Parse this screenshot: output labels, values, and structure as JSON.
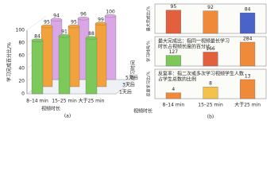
{
  "chart_data": [
    {
      "type": "bar3d",
      "ylabel": "学习完成百分比/%",
      "xlabel": "视频时长",
      "zlabel": "学习时间",
      "caption": "(a)",
      "categories": [
        "8–14 min",
        "15–25 min",
        "大于25 min"
      ],
      "series": [
        {
          "name": "1天后",
          "color": "#7cc85a",
          "values": [
            84,
            91,
            88
          ]
        },
        {
          "name": "3天后",
          "color": "#f2a23c",
          "values": [
            95,
            95,
            99
          ]
        },
        {
          "name": "5天后",
          "color": "#d9a6e6",
          "values": [
            94,
            96,
            100
          ]
        }
      ],
      "ylim": [
        0,
        100
      ],
      "yticks": [
        0,
        20,
        40,
        60,
        80,
        100
      ]
    },
    {
      "type": "panel-bar",
      "xlabel": "视频时长",
      "caption": "(b)",
      "categories": [
        "8–14 min",
        "15–25 min",
        "大于25 min"
      ],
      "panels": [
        {
          "ylabel": "最大完成比/%",
          "values": [
            95,
            92,
            84
          ],
          "colors": [
            "#e2603e",
            "#ef8a3a",
            "#4a63c9"
          ],
          "ylim": [
            0,
            120
          ]
        },
        {
          "ylabel": "学习时间/%",
          "values": [
            127,
            166,
            284
          ],
          "colors": [
            "#7cc85a",
            "#e2603e",
            "#ef8a3a"
          ],
          "ylim": [
            0,
            350
          ],
          "note": [
            "最大完成比：指同一视频最长学习",
            "时长占视频长度的百分比"
          ]
        },
        {
          "ylabel": "反复学习比/%",
          "values": [
            4,
            8,
            13
          ],
          "colors": [
            "#ef8a3a",
            "#f2c14e",
            "#ef8a3a"
          ],
          "ylim": [
            0,
            20
          ],
          "note": [
            "反复率：指二次或多次学习视频学生人数",
            "占学生总数的比例"
          ]
        }
      ]
    }
  ]
}
